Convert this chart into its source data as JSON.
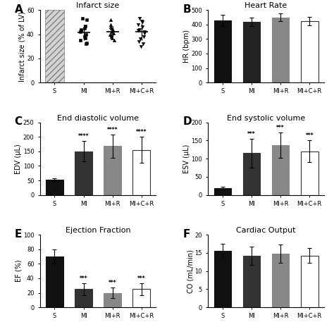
{
  "panel_A": {
    "title": "Infarct size",
    "ylabel": "Infarct size (% of LV)",
    "categories": [
      "S",
      "MI",
      "MI+R",
      "MI+C+R"
    ],
    "ylim": [
      0,
      60
    ],
    "yticks": [
      0,
      20,
      40,
      60
    ],
    "scatter_MI": [
      53,
      52,
      47,
      45,
      44,
      43,
      42,
      40,
      38,
      37,
      35,
      33,
      32
    ],
    "scatter_MIR": [
      52,
      48,
      46,
      45,
      44,
      43,
      42,
      41,
      40,
      39,
      38,
      37,
      35
    ],
    "scatter_MICR": [
      53,
      51,
      50,
      48,
      46,
      44,
      43,
      42,
      41,
      38,
      36,
      34,
      32,
      30
    ]
  },
  "panel_B": {
    "title": "Heart Rate",
    "ylabel": "HR (bpm)",
    "categories": [
      "S",
      "MI",
      "MI+R",
      "MI+C+R"
    ],
    "means": [
      428,
      418,
      450,
      422
    ],
    "errors": [
      40,
      30,
      25,
      30
    ],
    "ylim": [
      0,
      500
    ],
    "yticks": [
      0,
      100,
      200,
      300,
      400,
      500
    ],
    "bar_colors": [
      "#111111",
      "#222222",
      "#888888",
      "#ffffff"
    ],
    "bar_edgecolors": [
      "#111111",
      "#222222",
      "#888888",
      "#333333"
    ]
  },
  "panel_C": {
    "title": "End diastolic volume",
    "ylabel": "EDV (μL)",
    "categories": [
      "S",
      "MI",
      "MI+R",
      "MI+C+R"
    ],
    "means": [
      53,
      150,
      168,
      155
    ],
    "errors": [
      5,
      35,
      40,
      45
    ],
    "ylim": [
      0,
      250
    ],
    "yticks": [
      0,
      50,
      100,
      150,
      200,
      250
    ],
    "bar_colors": [
      "#111111",
      "#333333",
      "#888888",
      "#ffffff"
    ],
    "bar_edgecolors": [
      "#111111",
      "#333333",
      "#888888",
      "#333333"
    ],
    "sig_labels": [
      "",
      "****",
      "****",
      "****"
    ]
  },
  "panel_D": {
    "title": "End systolic volume",
    "ylabel": "ESV (μL)",
    "categories": [
      "S",
      "MI",
      "MI+R",
      "MI+C+R"
    ],
    "means": [
      18,
      115,
      138,
      120
    ],
    "errors": [
      5,
      40,
      35,
      30
    ],
    "ylim": [
      0,
      200
    ],
    "yticks": [
      0,
      50,
      100,
      150,
      200
    ],
    "bar_colors": [
      "#111111",
      "#333333",
      "#888888",
      "#ffffff"
    ],
    "bar_edgecolors": [
      "#111111",
      "#333333",
      "#888888",
      "#333333"
    ],
    "sig_labels": [
      "",
      "***",
      "***",
      "***"
    ]
  },
  "panel_E": {
    "title": "Ejection Fraction",
    "ylabel": "EF (%)",
    "categories": [
      "S",
      "MI",
      "MI+R",
      "MI+C+R"
    ],
    "means": [
      70,
      25,
      20,
      25
    ],
    "errors": [
      10,
      8,
      7,
      8
    ],
    "ylim": [
      0,
      100
    ],
    "yticks": [
      0,
      20,
      40,
      60,
      80,
      100
    ],
    "bar_colors": [
      "#111111",
      "#333333",
      "#888888",
      "#ffffff"
    ],
    "bar_edgecolors": [
      "#111111",
      "#333333",
      "#888888",
      "#333333"
    ],
    "sig_labels": [
      "",
      "***",
      "***",
      "***"
    ]
  },
  "panel_F": {
    "title": "Cardiac Output",
    "ylabel": "CO (mL/min)",
    "categories": [
      "S",
      "MI",
      "MI+R",
      "MI+C+R"
    ],
    "means": [
      15.5,
      14.2,
      14.8,
      14.3
    ],
    "errors": [
      2.0,
      2.5,
      2.5,
      2.0
    ],
    "ylim": [
      0,
      20
    ],
    "yticks": [
      0,
      5,
      10,
      15,
      20
    ],
    "bar_colors": [
      "#111111",
      "#333333",
      "#888888",
      "#ffffff"
    ],
    "bar_edgecolors": [
      "#111111",
      "#333333",
      "#888888",
      "#333333"
    ]
  },
  "label_fontsize": 11,
  "title_fontsize": 8,
  "axis_fontsize": 7,
  "tick_fontsize": 6
}
